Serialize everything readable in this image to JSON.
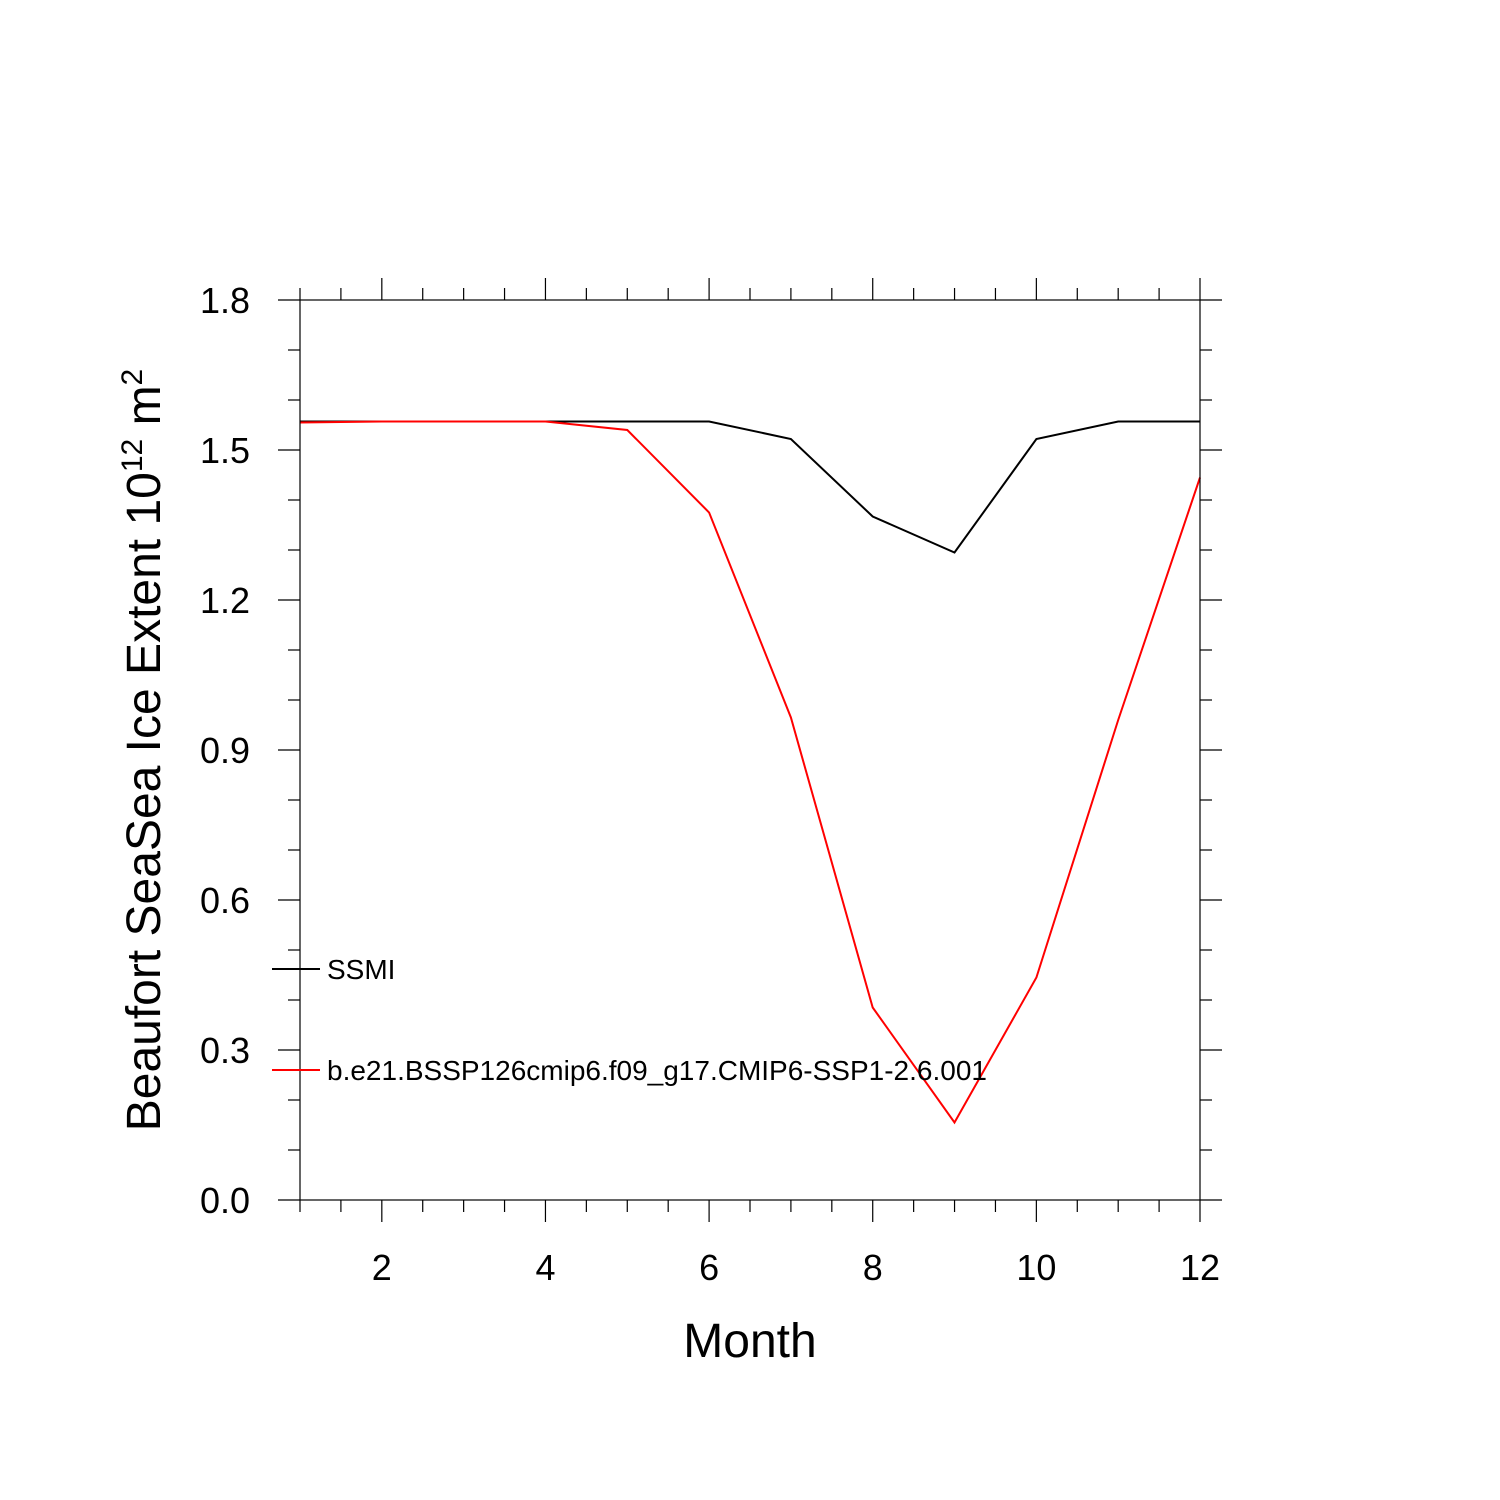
{
  "chart_data": {
    "type": "line",
    "title": "",
    "xlabel": "Month",
    "ylabel": {
      "main": "Beaufort SeaSea Ice Extent 10",
      "exp": "12",
      "unit": " m",
      "unit_exp": "2"
    },
    "xlim": [
      1,
      12
    ],
    "ylim": [
      0.0,
      1.8
    ],
    "xticks": [
      2,
      4,
      6,
      8,
      10,
      12
    ],
    "xtick_labels": [
      "2",
      "4",
      "6",
      "8",
      "10",
      "12"
    ],
    "yticks": [
      0.0,
      0.3,
      0.6,
      0.9,
      1.2,
      1.5,
      1.8
    ],
    "ytick_labels": [
      "0.0",
      "0.3",
      "0.6",
      "0.9",
      "1.2",
      "1.5",
      "1.8"
    ],
    "x_minor_step": 0.5,
    "y_minor_step": 0.1,
    "grid": false,
    "legend_placement": "lower-left inside",
    "x": [
      1,
      2,
      3,
      4,
      5,
      6,
      7,
      8,
      9,
      10,
      11,
      12
    ],
    "series": [
      {
        "name": "SSMI",
        "color": "#000000",
        "values": [
          1.557,
          1.557,
          1.557,
          1.557,
          1.557,
          1.557,
          1.522,
          1.367,
          1.295,
          1.522,
          1.557,
          1.557
        ]
      },
      {
        "name": "b.e21.BSSP126cmip6.f09_g17.CMIP6-SSP1-2.6.001",
        "color": "#ff0000",
        "values": [
          1.555,
          1.557,
          1.557,
          1.557,
          1.54,
          1.375,
          0.965,
          0.385,
          0.155,
          0.445,
          0.96,
          1.445
        ]
      }
    ]
  }
}
